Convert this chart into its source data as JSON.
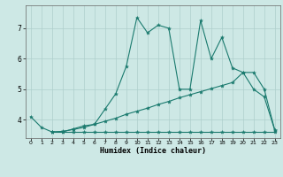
{
  "xlabel": "Humidex (Indice chaleur)",
  "xlim": [
    -0.5,
    23.5
  ],
  "ylim": [
    3.4,
    7.75
  ],
  "yticks": [
    4,
    5,
    6,
    7
  ],
  "xticks": [
    0,
    1,
    2,
    3,
    4,
    5,
    6,
    7,
    8,
    9,
    10,
    11,
    12,
    13,
    14,
    15,
    16,
    17,
    18,
    19,
    20,
    21,
    22,
    23
  ],
  "bg_color": "#cde8e5",
  "line_color": "#1a7a6e",
  "grid_color": "#aecfcc",
  "lines": [
    {
      "x": [
        0,
        1,
        2,
        3,
        4,
        5,
        6,
        7,
        8,
        9,
        10,
        11,
        12,
        13,
        14,
        15,
        16,
        17,
        18,
        19,
        20,
        21,
        22,
        23
      ],
      "y": [
        4.1,
        3.75,
        3.6,
        3.6,
        3.7,
        3.8,
        3.85,
        4.35,
        4.85,
        5.75,
        7.35,
        6.85,
        7.1,
        7.0,
        5.0,
        5.0,
        7.25,
        6.0,
        6.7,
        5.7,
        5.55,
        5.0,
        4.75,
        3.65
      ]
    },
    {
      "x": [
        2,
        3,
        4,
        5,
        6,
        7,
        8,
        9,
        10,
        11,
        12,
        13,
        14,
        15,
        16,
        17,
        18,
        19,
        20,
        21,
        22,
        23
      ],
      "y": [
        3.6,
        3.62,
        3.68,
        3.75,
        3.85,
        3.95,
        4.05,
        4.18,
        4.28,
        4.38,
        4.5,
        4.6,
        4.72,
        4.82,
        4.92,
        5.02,
        5.12,
        5.22,
        5.55,
        5.55,
        5.0,
        3.65
      ]
    },
    {
      "x": [
        2,
        3,
        4,
        5,
        6,
        7,
        8,
        9,
        10,
        11,
        12,
        13,
        14,
        15,
        16,
        17,
        18,
        19,
        20,
        21,
        22,
        23
      ],
      "y": [
        3.6,
        3.6,
        3.6,
        3.6,
        3.6,
        3.6,
        3.6,
        3.6,
        3.6,
        3.6,
        3.6,
        3.6,
        3.6,
        3.6,
        3.6,
        3.6,
        3.6,
        3.6,
        3.6,
        3.6,
        3.6,
        3.6
      ]
    }
  ],
  "font_family": "monospace"
}
